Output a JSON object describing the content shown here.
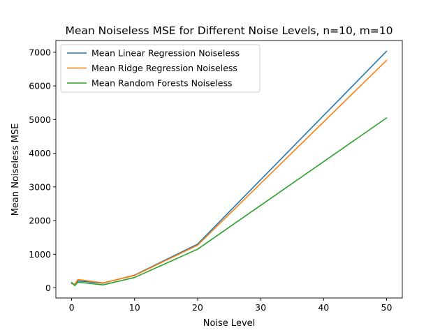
{
  "chart_data": {
    "type": "line",
    "title": "Mean Noiseless MSE for Different Noise Levels, n=10, m=10",
    "xlabel": "Noise Level",
    "ylabel": "Mean Noiseless MSE",
    "xlim": [
      -2.5,
      52.5
    ],
    "ylim": [
      -300,
      7350
    ],
    "xticks": [
      0,
      10,
      20,
      30,
      40,
      50
    ],
    "yticks": [
      0,
      1000,
      2000,
      3000,
      4000,
      5000,
      6000,
      7000
    ],
    "grid": false,
    "legend_position": "top-left",
    "x": [
      0,
      0.5,
      1,
      5,
      10,
      20,
      50
    ],
    "series": [
      {
        "name": "Mean Linear Regression Noiseless",
        "color": "#1f77b4",
        "values": [
          130,
          100,
          210,
          140,
          380,
          1300,
          7030
        ]
      },
      {
        "name": "Mean Ridge Regression Noiseless",
        "color": "#ff7f0e",
        "values": [
          140,
          110,
          250,
          150,
          370,
          1270,
          6760
        ]
      },
      {
        "name": "Mean Random Forests Noiseless",
        "color": "#2ca02c",
        "values": [
          160,
          70,
          170,
          90,
          310,
          1150,
          5050
        ]
      }
    ]
  }
}
